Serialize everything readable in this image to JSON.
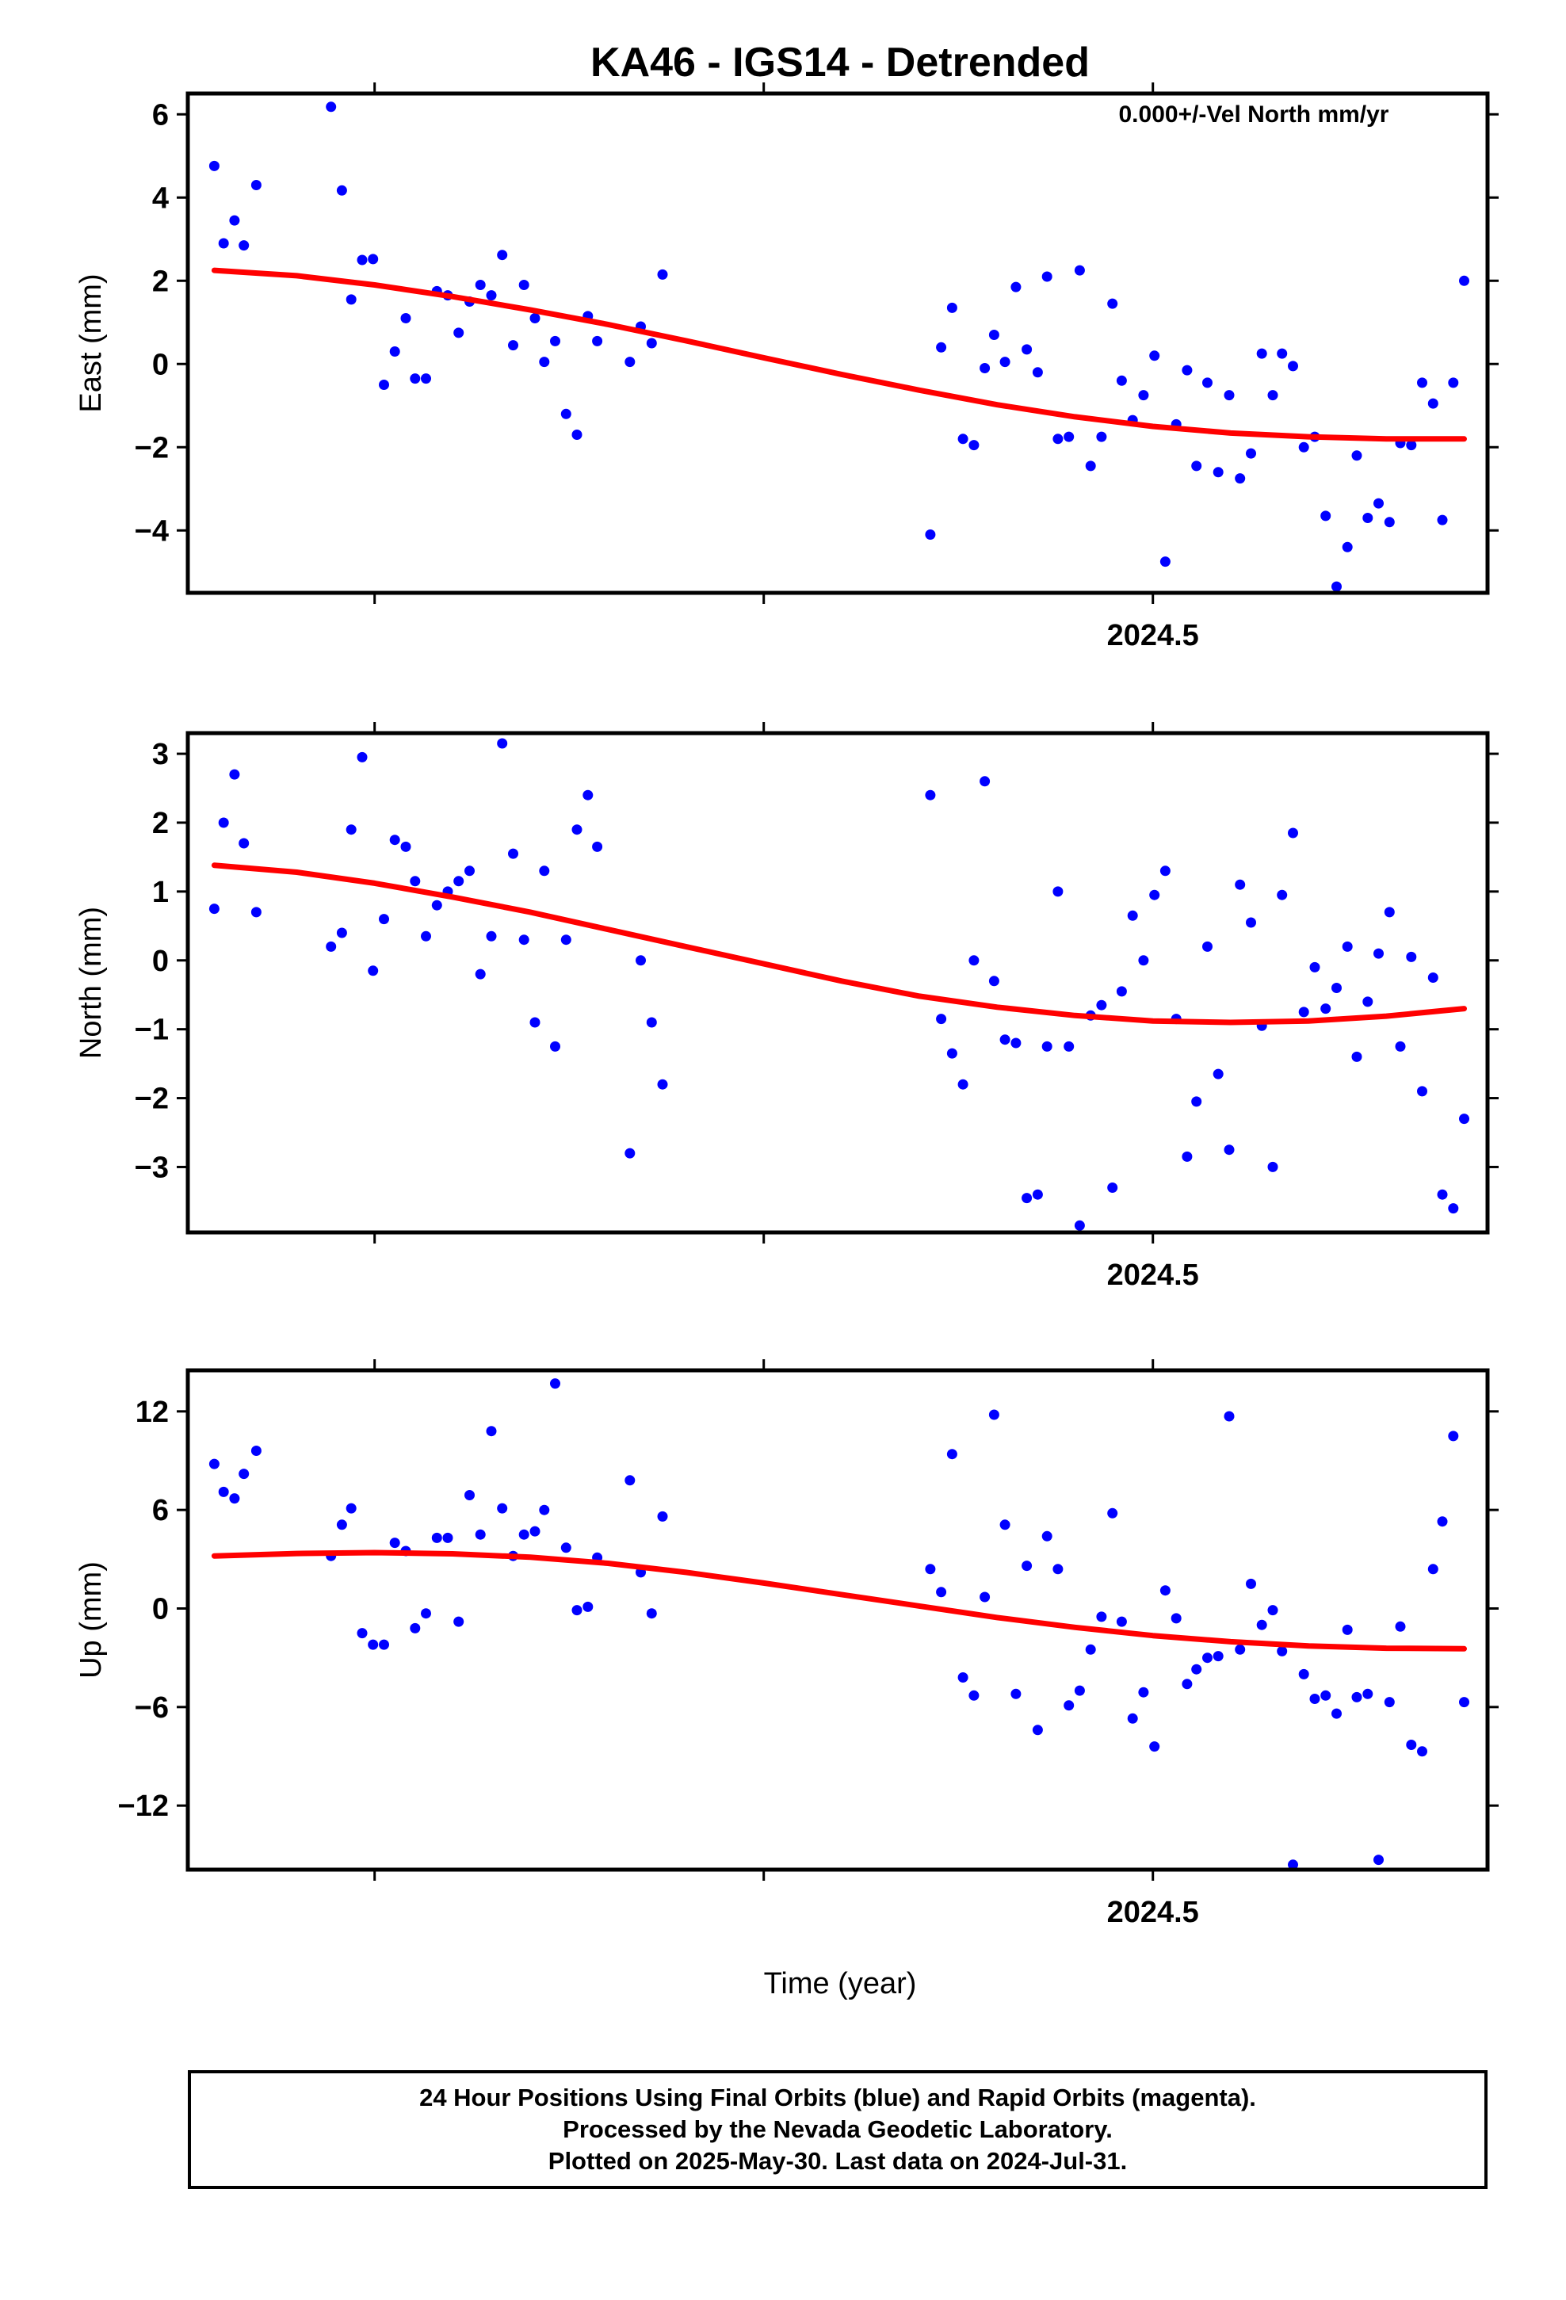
{
  "title": "KA46 - IGS14 - Detrended",
  "annotation": "0.000+/-Vel North mm/yr",
  "xlabel": "Time (year)",
  "footer": {
    "line1": "24 Hour Positions Using Final Orbits (blue) and Rapid Orbits (magenta).",
    "line2": "Processed by the Nevada Geodetic Laboratory.",
    "line3": "Plotted on 2025-May-30. Last data on 2024-Jul-31."
  },
  "colors": {
    "points": "#0000ff",
    "fit": "#ff0000",
    "axis": "#000000"
  },
  "chart_data": [
    {
      "type": "scatter",
      "ylabel": "East (mm)",
      "xlim": [
        2023.88,
        2024.715
      ],
      "ylim": [
        -5.5,
        6.5
      ],
      "yticks": [
        6,
        4,
        2,
        0,
        -2,
        -4
      ],
      "xticks_minor": [
        2024.0,
        2024.25
      ],
      "xticks_major": [
        2024.5
      ],
      "xtick_labels": [
        "2024.5"
      ],
      "points": [
        [
          2023.897,
          4.76
        ],
        [
          2023.903,
          2.9
        ],
        [
          2023.91,
          3.45
        ],
        [
          2023.916,
          2.85
        ],
        [
          2023.924,
          4.3
        ],
        [
          2023.972,
          6.18
        ],
        [
          2023.979,
          4.17
        ],
        [
          2023.985,
          1.55
        ],
        [
          2023.992,
          2.5
        ],
        [
          2023.999,
          2.52
        ],
        [
          2024.006,
          -0.5
        ],
        [
          2024.013,
          0.3
        ],
        [
          2024.02,
          1.1
        ],
        [
          2024.026,
          -0.35
        ],
        [
          2024.033,
          -0.35
        ],
        [
          2024.04,
          1.75
        ],
        [
          2024.047,
          1.65
        ],
        [
          2024.054,
          0.75
        ],
        [
          2024.061,
          1.5
        ],
        [
          2024.068,
          1.9
        ],
        [
          2024.075,
          1.65
        ],
        [
          2024.082,
          2.62
        ],
        [
          2024.089,
          0.45
        ],
        [
          2024.096,
          1.9
        ],
        [
          2024.103,
          1.1
        ],
        [
          2024.109,
          0.05
        ],
        [
          2024.116,
          0.55
        ],
        [
          2024.123,
          -1.2
        ],
        [
          2024.13,
          -1.7
        ],
        [
          2024.137,
          1.15
        ],
        [
          2024.143,
          0.55
        ],
        [
          2024.164,
          0.05
        ],
        [
          2024.171,
          0.9
        ],
        [
          2024.178,
          0.5
        ],
        [
          2024.185,
          2.15
        ],
        [
          2024.357,
          -4.1
        ],
        [
          2024.364,
          0.4
        ],
        [
          2024.371,
          1.35
        ],
        [
          2024.378,
          -1.8
        ],
        [
          2024.385,
          -1.95
        ],
        [
          2024.392,
          -0.1
        ],
        [
          2024.398,
          0.7
        ],
        [
          2024.405,
          0.05
        ],
        [
          2024.412,
          1.85
        ],
        [
          2024.419,
          0.35
        ],
        [
          2024.426,
          -0.2
        ],
        [
          2024.432,
          2.1
        ],
        [
          2024.439,
          -1.8
        ],
        [
          2024.446,
          -1.75
        ],
        [
          2024.453,
          2.25
        ],
        [
          2024.46,
          -2.45
        ],
        [
          2024.467,
          -1.75
        ],
        [
          2024.474,
          1.45
        ],
        [
          2024.48,
          -0.4
        ],
        [
          2024.487,
          -1.35
        ],
        [
          2024.494,
          -0.75
        ],
        [
          2024.501,
          0.2
        ],
        [
          2024.508,
          -4.75
        ],
        [
          2024.515,
          -1.45
        ],
        [
          2024.522,
          -0.15
        ],
        [
          2024.528,
          -2.45
        ],
        [
          2024.535,
          -0.45
        ],
        [
          2024.542,
          -2.6
        ],
        [
          2024.549,
          -0.75
        ],
        [
          2024.556,
          -2.75
        ],
        [
          2024.563,
          -2.15
        ],
        [
          2024.57,
          0.25
        ],
        [
          2024.577,
          -0.75
        ],
        [
          2024.583,
          0.25
        ],
        [
          2024.59,
          -0.05
        ],
        [
          2024.597,
          -2.0
        ],
        [
          2024.604,
          -1.75
        ],
        [
          2024.611,
          -3.65
        ],
        [
          2024.618,
          -5.35
        ],
        [
          2024.625,
          -4.4
        ],
        [
          2024.631,
          -2.2
        ],
        [
          2024.638,
          -3.7
        ],
        [
          2024.645,
          -3.35
        ],
        [
          2024.652,
          -3.8
        ],
        [
          2024.659,
          -1.9
        ],
        [
          2024.666,
          -1.95
        ],
        [
          2024.673,
          -0.45
        ],
        [
          2024.68,
          -0.95
        ],
        [
          2024.686,
          -3.75
        ],
        [
          2024.693,
          -0.45
        ],
        [
          2024.7,
          2.0
        ]
      ],
      "fit": [
        [
          2023.897,
          2.25
        ],
        [
          2023.95,
          2.12
        ],
        [
          2024.0,
          1.9
        ],
        [
          2024.05,
          1.62
        ],
        [
          2024.1,
          1.3
        ],
        [
          2024.15,
          0.95
        ],
        [
          2024.2,
          0.56
        ],
        [
          2024.25,
          0.15
        ],
        [
          2024.3,
          -0.25
        ],
        [
          2024.35,
          -0.63
        ],
        [
          2024.4,
          -0.98
        ],
        [
          2024.45,
          -1.27
        ],
        [
          2024.5,
          -1.5
        ],
        [
          2024.55,
          -1.66
        ],
        [
          2024.6,
          -1.75
        ],
        [
          2024.65,
          -1.8
        ],
        [
          2024.7,
          -1.8
        ]
      ]
    },
    {
      "type": "scatter",
      "ylabel": "North (mm)",
      "xlim": [
        2023.88,
        2024.715
      ],
      "ylim": [
        -3.95,
        3.3
      ],
      "yticks": [
        3,
        2,
        1,
        0,
        -1,
        -2,
        -3
      ],
      "xticks_minor": [
        2024.0,
        2024.25
      ],
      "xticks_major": [
        2024.5
      ],
      "xtick_labels": [
        "2024.5"
      ],
      "points": [
        [
          2023.897,
          0.75
        ],
        [
          2023.903,
          2.0
        ],
        [
          2023.91,
          2.7
        ],
        [
          2023.916,
          1.7
        ],
        [
          2023.924,
          0.7
        ],
        [
          2023.972,
          0.2
        ],
        [
          2023.979,
          0.4
        ],
        [
          2023.985,
          1.9
        ],
        [
          2023.992,
          2.95
        ],
        [
          2023.999,
          -0.15
        ],
        [
          2024.006,
          0.6
        ],
        [
          2024.013,
          1.75
        ],
        [
          2024.02,
          1.65
        ],
        [
          2024.026,
          1.15
        ],
        [
          2024.033,
          0.35
        ],
        [
          2024.04,
          0.8
        ],
        [
          2024.047,
          1.0
        ],
        [
          2024.054,
          1.15
        ],
        [
          2024.061,
          1.3
        ],
        [
          2024.068,
          -0.2
        ],
        [
          2024.075,
          0.35
        ],
        [
          2024.082,
          3.15
        ],
        [
          2024.089,
          1.55
        ],
        [
          2024.096,
          0.3
        ],
        [
          2024.103,
          -0.9
        ],
        [
          2024.109,
          1.3
        ],
        [
          2024.116,
          -1.25
        ],
        [
          2024.123,
          0.3
        ],
        [
          2024.13,
          1.9
        ],
        [
          2024.137,
          2.4
        ],
        [
          2024.143,
          1.65
        ],
        [
          2024.164,
          -2.8
        ],
        [
          2024.171,
          0.0
        ],
        [
          2024.178,
          -0.9
        ],
        [
          2024.185,
          -1.8
        ],
        [
          2024.357,
          2.4
        ],
        [
          2024.364,
          -0.85
        ],
        [
          2024.371,
          -1.35
        ],
        [
          2024.378,
          -1.8
        ],
        [
          2024.385,
          0.0
        ],
        [
          2024.392,
          2.6
        ],
        [
          2024.398,
          -0.3
        ],
        [
          2024.405,
          -1.15
        ],
        [
          2024.412,
          -1.2
        ],
        [
          2024.419,
          -3.45
        ],
        [
          2024.426,
          -3.4
        ],
        [
          2024.432,
          -1.25
        ],
        [
          2024.439,
          1.0
        ],
        [
          2024.446,
          -1.25
        ],
        [
          2024.453,
          -3.85
        ],
        [
          2024.46,
          -0.8
        ],
        [
          2024.467,
          -0.65
        ],
        [
          2024.474,
          -3.3
        ],
        [
          2024.48,
          -0.45
        ],
        [
          2024.487,
          0.65
        ],
        [
          2024.494,
          0.0
        ],
        [
          2024.501,
          0.95
        ],
        [
          2024.508,
          1.3
        ],
        [
          2024.515,
          -0.85
        ],
        [
          2024.522,
          -2.85
        ],
        [
          2024.528,
          -2.05
        ],
        [
          2024.535,
          0.2
        ],
        [
          2024.542,
          -1.65
        ],
        [
          2024.549,
          -2.75
        ],
        [
          2024.556,
          1.1
        ],
        [
          2024.563,
          0.55
        ],
        [
          2024.57,
          -0.95
        ],
        [
          2024.577,
          -3.0
        ],
        [
          2024.583,
          0.95
        ],
        [
          2024.59,
          1.85
        ],
        [
          2024.597,
          -0.75
        ],
        [
          2024.604,
          -0.1
        ],
        [
          2024.611,
          -0.7
        ],
        [
          2024.618,
          -0.4
        ],
        [
          2024.625,
          0.2
        ],
        [
          2024.631,
          -1.4
        ],
        [
          2024.638,
          -0.6
        ],
        [
          2024.645,
          0.1
        ],
        [
          2024.652,
          0.7
        ],
        [
          2024.659,
          -1.25
        ],
        [
          2024.666,
          0.05
        ],
        [
          2024.673,
          -1.9
        ],
        [
          2024.68,
          -0.25
        ],
        [
          2024.686,
          -3.4
        ],
        [
          2024.693,
          -3.6
        ],
        [
          2024.7,
          -2.3
        ]
      ],
      "fit": [
        [
          2023.897,
          1.38
        ],
        [
          2023.95,
          1.28
        ],
        [
          2024.0,
          1.12
        ],
        [
          2024.05,
          0.92
        ],
        [
          2024.1,
          0.7
        ],
        [
          2024.15,
          0.45
        ],
        [
          2024.2,
          0.2
        ],
        [
          2024.25,
          -0.05
        ],
        [
          2024.3,
          -0.3
        ],
        [
          2024.35,
          -0.52
        ],
        [
          2024.4,
          -0.68
        ],
        [
          2024.45,
          -0.8
        ],
        [
          2024.5,
          -0.88
        ],
        [
          2024.55,
          -0.9
        ],
        [
          2024.6,
          -0.88
        ],
        [
          2024.65,
          -0.81
        ],
        [
          2024.7,
          -0.7
        ]
      ]
    },
    {
      "type": "scatter",
      "ylabel": "Up (mm)",
      "xlim": [
        2023.88,
        2024.715
      ],
      "ylim": [
        -15.9,
        14.5
      ],
      "yticks": [
        12,
        6,
        0,
        -6,
        -12
      ],
      "xticks_minor": [
        2024.0,
        2024.25
      ],
      "xticks_major": [
        2024.5
      ],
      "xtick_labels": [
        "2024.5"
      ],
      "points": [
        [
          2023.897,
          8.8
        ],
        [
          2023.903,
          7.1
        ],
        [
          2023.91,
          6.7
        ],
        [
          2023.916,
          8.2
        ],
        [
          2023.924,
          9.6
        ],
        [
          2023.972,
          3.2
        ],
        [
          2023.979,
          5.1
        ],
        [
          2023.985,
          6.1
        ],
        [
          2023.992,
          -1.5
        ],
        [
          2023.999,
          -2.2
        ],
        [
          2024.006,
          -2.2
        ],
        [
          2024.013,
          4.0
        ],
        [
          2024.02,
          3.5
        ],
        [
          2024.026,
          -1.2
        ],
        [
          2024.033,
          -0.3
        ],
        [
          2024.04,
          4.3
        ],
        [
          2024.047,
          4.3
        ],
        [
          2024.054,
          -0.8
        ],
        [
          2024.061,
          6.9
        ],
        [
          2024.068,
          4.5
        ],
        [
          2024.075,
          10.8
        ],
        [
          2024.082,
          6.1
        ],
        [
          2024.089,
          3.2
        ],
        [
          2024.096,
          4.5
        ],
        [
          2024.103,
          4.7
        ],
        [
          2024.109,
          6.0
        ],
        [
          2024.116,
          13.7
        ],
        [
          2024.123,
          3.7
        ],
        [
          2024.13,
          -0.1
        ],
        [
          2024.137,
          0.1
        ],
        [
          2024.143,
          3.1
        ],
        [
          2024.164,
          7.8
        ],
        [
          2024.171,
          2.2
        ],
        [
          2024.178,
          -0.3
        ],
        [
          2024.185,
          5.6
        ],
        [
          2024.357,
          2.4
        ],
        [
          2024.364,
          1.0
        ],
        [
          2024.371,
          9.4
        ],
        [
          2024.378,
          -4.2
        ],
        [
          2024.385,
          -5.3
        ],
        [
          2024.392,
          0.7
        ],
        [
          2024.398,
          11.8
        ],
        [
          2024.405,
          5.1
        ],
        [
          2024.412,
          -5.2
        ],
        [
          2024.419,
          2.6
        ],
        [
          2024.426,
          -7.4
        ],
        [
          2024.432,
          4.4
        ],
        [
          2024.439,
          2.4
        ],
        [
          2024.446,
          -5.9
        ],
        [
          2024.453,
          -5.0
        ],
        [
          2024.46,
          -2.5
        ],
        [
          2024.467,
          -0.5
        ],
        [
          2024.474,
          5.8
        ],
        [
          2024.48,
          -0.8
        ],
        [
          2024.487,
          -6.7
        ],
        [
          2024.494,
          -5.1
        ],
        [
          2024.501,
          -8.4
        ],
        [
          2024.508,
          1.1
        ],
        [
          2024.515,
          -0.6
        ],
        [
          2024.522,
          -4.6
        ],
        [
          2024.528,
          -3.7
        ],
        [
          2024.535,
          -3.0
        ],
        [
          2024.542,
          -2.9
        ],
        [
          2024.549,
          11.7
        ],
        [
          2024.556,
          -2.5
        ],
        [
          2024.563,
          1.5
        ],
        [
          2024.57,
          -1.0
        ],
        [
          2024.577,
          -0.1
        ],
        [
          2024.583,
          -2.6
        ],
        [
          2024.59,
          -15.6
        ],
        [
          2024.597,
          -4.0
        ],
        [
          2024.604,
          -5.5
        ],
        [
          2024.611,
          -5.3
        ],
        [
          2024.618,
          -6.4
        ],
        [
          2024.625,
          -1.3
        ],
        [
          2024.631,
          -5.4
        ],
        [
          2024.638,
          -5.2
        ],
        [
          2024.645,
          -15.3
        ],
        [
          2024.652,
          -5.7
        ],
        [
          2024.659,
          -1.1
        ],
        [
          2024.666,
          -8.3
        ],
        [
          2024.673,
          -8.7
        ],
        [
          2024.68,
          2.4
        ],
        [
          2024.686,
          5.3
        ],
        [
          2024.693,
          10.5
        ],
        [
          2024.7,
          -5.7
        ]
      ],
      "fit": [
        [
          2023.897,
          3.2
        ],
        [
          2023.95,
          3.35
        ],
        [
          2024.0,
          3.4
        ],
        [
          2024.05,
          3.33
        ],
        [
          2024.1,
          3.12
        ],
        [
          2024.15,
          2.75
        ],
        [
          2024.2,
          2.2
        ],
        [
          2024.25,
          1.55
        ],
        [
          2024.3,
          0.85
        ],
        [
          2024.35,
          0.15
        ],
        [
          2024.4,
          -0.55
        ],
        [
          2024.45,
          -1.15
        ],
        [
          2024.5,
          -1.65
        ],
        [
          2024.55,
          -2.02
        ],
        [
          2024.6,
          -2.28
        ],
        [
          2024.65,
          -2.42
        ],
        [
          2024.7,
          -2.45
        ]
      ]
    }
  ]
}
